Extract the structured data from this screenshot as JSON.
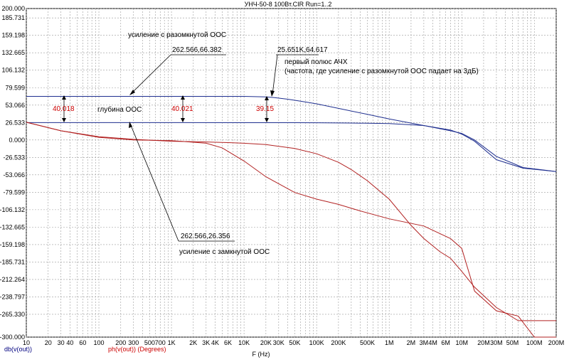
{
  "chart_data": {
    "type": "line",
    "title": "УНЧ-50-8 100Вт.CIR Run=1..2",
    "xlabel": "F (Hz)",
    "x_scale": "log",
    "xlim": [
      10,
      200000000
    ],
    "ylim": [
      -300,
      200
    ],
    "y_ticks": [
      "200.000",
      "185.731",
      "159.198",
      "132.665",
      "106.132",
      "79.599",
      "53.066",
      "26.533",
      "0.000",
      "-26.533",
      "-53.066",
      "-79.599",
      "-106.132",
      "-132.665",
      "-159.198",
      "-185.731",
      "-212.264",
      "-238.797",
      "-265.330",
      "-300.000"
    ],
    "x_ticks": [
      {
        "value": 10,
        "label": "10"
      },
      {
        "value": 20,
        "label": "20"
      },
      {
        "value": 30,
        "label": "30"
      },
      {
        "value": 40,
        "label": "40"
      },
      {
        "value": 60,
        "label": "60"
      },
      {
        "value": 100,
        "label": "100"
      },
      {
        "value": 200,
        "label": "200"
      },
      {
        "value": 300,
        "label": "300"
      },
      {
        "value": 500,
        "label": "500"
      },
      {
        "value": 700,
        "label": "700"
      },
      {
        "value": 1000,
        "label": "1K"
      },
      {
        "value": 2000,
        "label": "2K"
      },
      {
        "value": 3000,
        "label": "3K"
      },
      {
        "value": 4000,
        "label": "4K"
      },
      {
        "value": 6000,
        "label": "6K"
      },
      {
        "value": 10000,
        "label": "10K"
      },
      {
        "value": 20000,
        "label": "20K"
      },
      {
        "value": 30000,
        "label": "30K"
      },
      {
        "value": 50000,
        "label": "50K"
      },
      {
        "value": 100000,
        "label": "100K"
      },
      {
        "value": 200000,
        "label": "200K"
      },
      {
        "value": 500000,
        "label": "500K"
      },
      {
        "value": 1000000,
        "label": "1M"
      },
      {
        "value": 2000000,
        "label": "2M"
      },
      {
        "value": 3000000,
        "label": "3M"
      },
      {
        "value": 4000000,
        "label": "4M"
      },
      {
        "value": 6000000,
        "label": "6M"
      },
      {
        "value": 10000000,
        "label": "10M"
      },
      {
        "value": 20000000,
        "label": "20M"
      },
      {
        "value": 30000000,
        "label": "30M"
      },
      {
        "value": 50000000,
        "label": "50M"
      },
      {
        "value": 100000000,
        "label": "100M"
      },
      {
        "value": 200000000,
        "label": "200M"
      }
    ],
    "grid": true,
    "legend_bottom_left": [
      {
        "label": "db(v(out))",
        "color": "#000080"
      },
      {
        "label": "ph(v(out)) (Degrees)",
        "color": "#cc0000"
      }
    ],
    "series": [
      {
        "name": "db(v(out))",
        "color": "#1f2f8f",
        "x": [
          10,
          1000,
          10000,
          20000,
          25651,
          40000,
          60000,
          100000,
          200000,
          500000,
          1000000,
          3000000,
          7000000,
          10000000,
          15000000,
          30000000,
          70000000,
          200000000
        ],
        "y": [
          66.382,
          66.382,
          66.3,
          65.5,
          64.617,
          62,
          59,
          55,
          48,
          39,
          32,
          22,
          14,
          10,
          0,
          -25,
          -42,
          -48
        ]
      },
      {
        "name": "",
        "color": "#1f2f8f",
        "x": [
          10,
          1000,
          10000,
          50000,
          100000,
          300000,
          1000000,
          3000000,
          7000000,
          10000000,
          15000000,
          30000000,
          70000000,
          200000000
        ],
        "y": [
          26.356,
          26.356,
          26.35,
          26.3,
          26.2,
          25.8,
          25,
          22,
          15,
          9,
          -2,
          -30,
          -43,
          -48
        ]
      },
      {
        "name": "ph(v(out))",
        "color": "#b22222",
        "x": [
          10,
          30,
          100,
          300,
          1000,
          3000,
          6000,
          10000,
          20000,
          50000,
          100000,
          200000,
          300000,
          500000,
          1000000,
          2000000,
          3000000,
          5000000,
          7000000,
          10000000,
          15000000,
          30000000,
          60000000,
          100000000,
          150000000,
          200000000
        ],
        "y": [
          27,
          14,
          5,
          1,
          -2,
          -3,
          -4,
          -5,
          -7,
          -13,
          -21,
          -34,
          -45,
          -62,
          -90,
          -130,
          -150,
          -170,
          -180,
          -200,
          -224,
          -255,
          -275,
          -275,
          -275,
          -275
        ]
      },
      {
        "name": "",
        "color": "#b22222",
        "x": [
          10,
          30,
          100,
          300,
          1000,
          3000,
          5000,
          10000,
          20000,
          50000,
          100000,
          200000,
          400000,
          1000000,
          3000000,
          7000000,
          10000000,
          15000000,
          30000000,
          60000000,
          100000000,
          200000000
        ],
        "y": [
          27,
          14,
          4,
          0,
          -1,
          -5,
          -12,
          -32,
          -56,
          -80,
          -90,
          -98,
          -108,
          -120,
          -131,
          -150,
          -165,
          -230,
          -260,
          -268,
          -300,
          -300
        ]
      }
    ],
    "annotations": {
      "open_loop_label": "усиление с разомкнутой ООС",
      "point_open": "262.566,66.382",
      "pole_point": "25.651K,64.617",
      "pole_line1": "первый полюс АЧХ",
      "pole_line2": "(частота, где усиление с разомкнутой ООС падает на 3дБ)",
      "depth_label": "глубина ООС",
      "depth1": "40.018",
      "depth2": "40.021",
      "depth3": "39.15",
      "point_closed": "262.566,26.356",
      "closed_loop_label": "усиление с замкнутой ООС"
    }
  }
}
